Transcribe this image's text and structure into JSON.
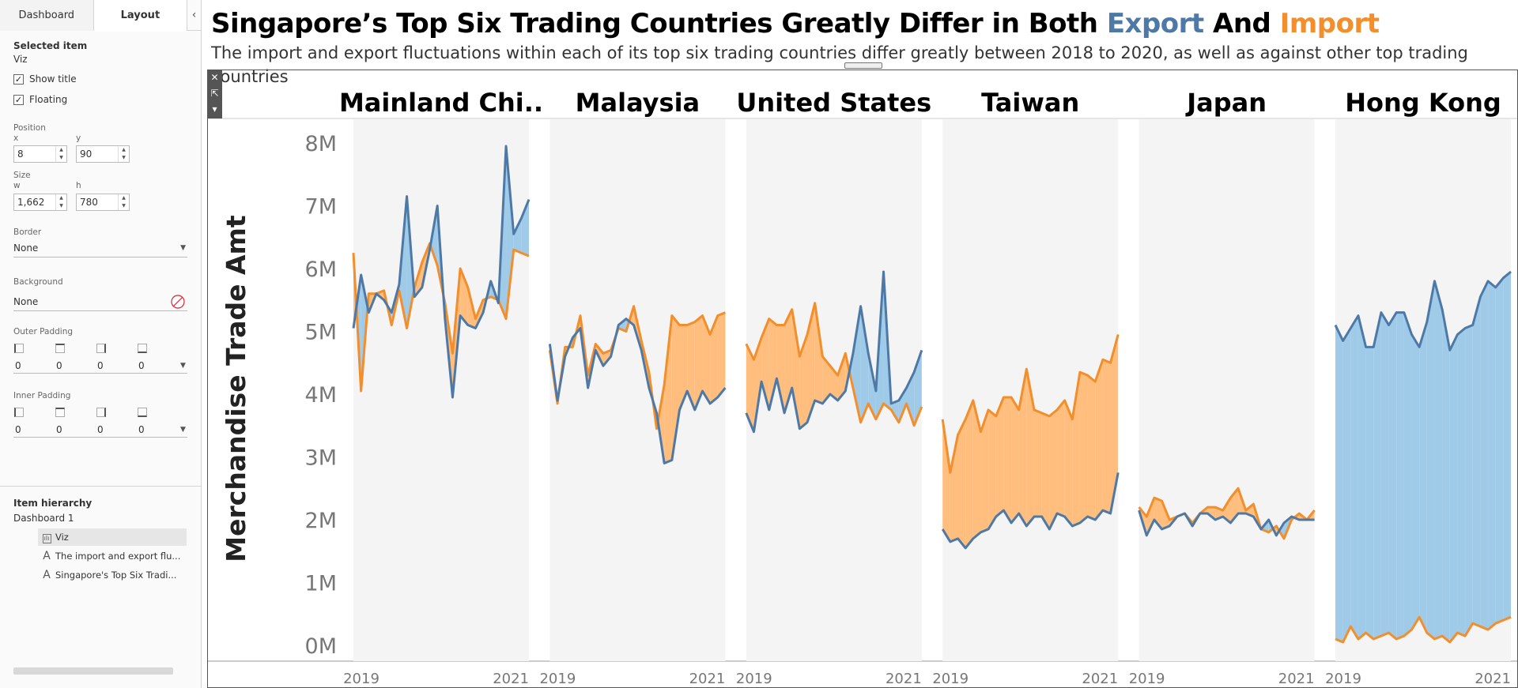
{
  "panel": {
    "tabs": [
      "Dashboard",
      "Layout"
    ],
    "selected_item_label": "Selected item",
    "selected_item_value": "Viz",
    "show_title_label": "Show title",
    "floating_label": "Floating",
    "position_label": "Position",
    "x_label": "x",
    "y_label": "y",
    "x_value": "8",
    "y_value": "90",
    "size_label": "Size",
    "w_label": "w",
    "h_label": "h",
    "w_value": "1,662",
    "h_value": "780",
    "border_label": "Border",
    "border_value": "None",
    "background_label": "Background",
    "background_value": "None",
    "outer_padding_label": "Outer Padding",
    "outer_padding_values": [
      "0",
      "0",
      "0",
      "0"
    ],
    "inner_padding_label": "Inner Padding",
    "inner_padding_values": [
      "0",
      "0",
      "0",
      "0"
    ],
    "hierarchy_label": "Item hierarchy",
    "hierarchy_root": "Dashboard 1",
    "hierarchy_items": [
      "Viz",
      "The import and export flu...",
      "Singapore's Top Six Tradi..."
    ]
  },
  "dashboard": {
    "title_pre": "Singapore’s Top Six Trading Countries Greatly Differ in Both ",
    "title_export": "Export",
    "title_and": " And ",
    "title_import": "Import",
    "subtitle": "The import and export fluctuations within each of its top six trading countries differ greatly between 2018 to 2020, as well as against other top trading countries",
    "colors": {
      "export": "#4e79a7",
      "import": "#f28e2b",
      "export_fill": "#a0cbe8",
      "import_fill": "#ffbe7d",
      "panel_bg": "#f4f4f4"
    }
  },
  "chart_data": {
    "type": "line",
    "ylabel": "Merchandise Trade Amt",
    "y_ticks": [
      "0M",
      "1M",
      "2M",
      "3M",
      "4M",
      "5M",
      "6M",
      "7M",
      "8M"
    ],
    "ylim": [
      0,
      8
    ],
    "x_tick_labels": [
      "2019",
      "2021"
    ],
    "panels": [
      {
        "name": "Mainland Chi..",
        "export": [
          5.05,
          5.9,
          5.3,
          5.6,
          5.5,
          5.3,
          5.75,
          7.15,
          5.55,
          5.7,
          6.3,
          7.0,
          5.2,
          3.95,
          5.25,
          5.1,
          5.05,
          5.3,
          5.8,
          5.45,
          7.95,
          6.55,
          6.8,
          7.1
        ],
        "import": [
          6.25,
          4.05,
          5.6,
          5.6,
          5.65,
          5.1,
          5.65,
          5.05,
          5.7,
          6.1,
          6.4,
          6.05,
          5.45,
          4.65,
          6.0,
          5.7,
          5.2,
          5.5,
          5.55,
          5.5,
          5.2,
          6.3,
          6.25,
          6.2
        ]
      },
      {
        "name": "Malaysia",
        "export": [
          4.8,
          3.9,
          4.6,
          4.9,
          5.05,
          4.1,
          4.7,
          4.45,
          4.6,
          5.1,
          5.2,
          5.1,
          4.7,
          4.1,
          3.7,
          2.9,
          2.95,
          3.75,
          4.05,
          3.75,
          4.05,
          3.85,
          3.95,
          4.1
        ],
        "import": [
          4.7,
          3.85,
          4.75,
          4.75,
          5.25,
          4.3,
          4.8,
          4.65,
          4.7,
          5.05,
          5.0,
          5.4,
          4.85,
          4.35,
          3.45,
          4.15,
          5.25,
          5.1,
          5.1,
          5.15,
          5.25,
          4.95,
          5.25,
          5.3
        ]
      },
      {
        "name": "United States",
        "export": [
          3.7,
          3.4,
          4.2,
          3.75,
          4.25,
          3.7,
          4.1,
          3.45,
          3.55,
          3.9,
          3.85,
          4.0,
          3.9,
          4.05,
          4.65,
          5.4,
          4.65,
          4.05,
          5.95,
          3.85,
          3.9,
          4.1,
          4.35,
          4.7
        ],
        "import": [
          4.8,
          4.55,
          4.9,
          5.2,
          5.1,
          5.1,
          5.35,
          4.6,
          4.95,
          5.45,
          4.6,
          4.45,
          4.3,
          4.65,
          4.1,
          3.55,
          3.85,
          3.6,
          3.85,
          3.75,
          3.55,
          3.85,
          3.5,
          3.8
        ]
      },
      {
        "name": "Taiwan",
        "export": [
          1.85,
          1.65,
          1.7,
          1.55,
          1.7,
          1.8,
          1.85,
          2.05,
          2.15,
          1.95,
          2.1,
          1.9,
          2.05,
          2.05,
          1.85,
          2.1,
          2.05,
          1.9,
          1.95,
          2.05,
          2.0,
          2.15,
          2.1,
          2.75
        ],
        "import": [
          3.6,
          2.75,
          3.35,
          3.6,
          3.9,
          3.4,
          3.75,
          3.65,
          3.95,
          3.95,
          3.75,
          4.4,
          3.75,
          3.7,
          3.65,
          3.75,
          3.9,
          3.6,
          4.35,
          4.3,
          4.2,
          4.55,
          4.5,
          4.95
        ]
      },
      {
        "name": "Japan",
        "export": [
          2.15,
          1.75,
          2.0,
          1.85,
          1.9,
          2.05,
          2.1,
          1.9,
          2.1,
          2.1,
          2.0,
          2.05,
          1.95,
          2.1,
          2.1,
          2.05,
          1.85,
          2.0,
          1.75,
          1.95,
          2.05,
          2.0,
          2.0,
          2.0
        ],
        "import": [
          2.2,
          2.05,
          2.35,
          2.3,
          2.0,
          2.05,
          2.1,
          1.95,
          2.1,
          2.2,
          2.2,
          2.15,
          2.35,
          2.5,
          2.15,
          2.25,
          1.85,
          1.8,
          1.9,
          1.7,
          2.0,
          2.1,
          2.0,
          2.15
        ]
      },
      {
        "name": "Hong Kong",
        "export": [
          5.1,
          4.85,
          5.05,
          5.25,
          4.75,
          4.75,
          5.3,
          5.1,
          5.3,
          5.3,
          4.95,
          4.75,
          5.15,
          5.8,
          5.35,
          4.7,
          4.95,
          5.05,
          5.1,
          5.55,
          5.8,
          5.7,
          5.85,
          5.95
        ],
        "import": [
          0.1,
          0.05,
          0.3,
          0.1,
          0.2,
          0.1,
          0.15,
          0.2,
          0.1,
          0.15,
          0.25,
          0.45,
          0.2,
          0.1,
          0.15,
          0.05,
          0.2,
          0.15,
          0.35,
          0.3,
          0.25,
          0.35,
          0.4,
          0.45
        ]
      }
    ]
  }
}
